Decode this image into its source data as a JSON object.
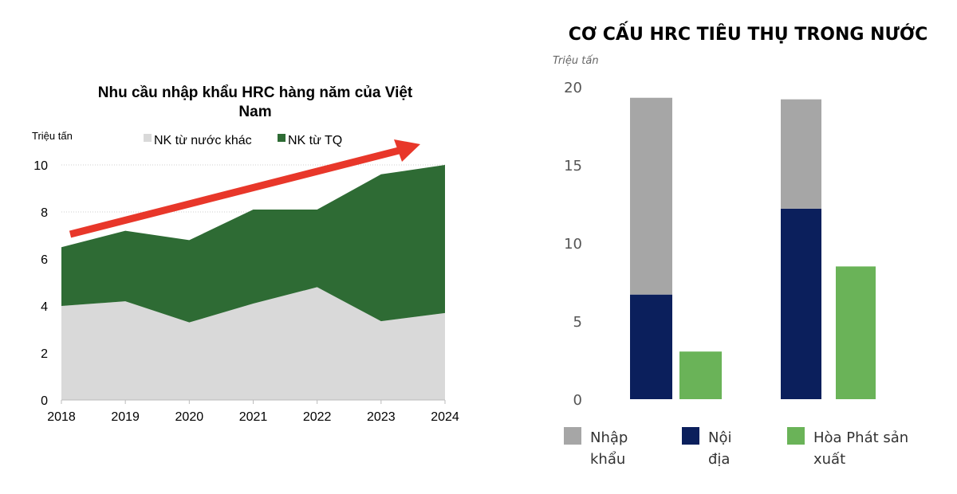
{
  "chart_data": [
    {
      "type": "area",
      "stacked": true,
      "title": "Nhu cầu nhập khẩu HRC hàng năm của Việt Nam",
      "title_lines": [
        "Nhu cầu nhập khẩu HRC hàng năm của Việt",
        "Nam"
      ],
      "ylabel": "Triệu tấn",
      "xlabel": "",
      "x": [
        "2018",
        "2019",
        "2020",
        "2021",
        "2022",
        "2023",
        "2024"
      ],
      "yticks": [
        "0",
        "2",
        "4",
        "6",
        "8",
        "10"
      ],
      "ylim": [
        0,
        10
      ],
      "grid": true,
      "legend_position": "top",
      "series": [
        {
          "name": "NK từ nước khác",
          "color": "#d9d9d9",
          "values": [
            4.0,
            4.2,
            3.3,
            4.1,
            4.8,
            3.35,
            3.7
          ]
        },
        {
          "name": "NK từ TQ",
          "color": "#2e6b34",
          "values": [
            2.5,
            3.0,
            3.5,
            4.0,
            3.3,
            6.25,
            6.3
          ]
        }
      ],
      "annotation": {
        "type": "trend-arrow",
        "color": "#e8372a"
      }
    },
    {
      "type": "bar",
      "title": "CƠ CẤU HRC TIÊU THỤ TRONG NƯỚC",
      "ylabel": "Triệu tấn",
      "yticks": [
        "0",
        "5",
        "10",
        "15",
        "20"
      ],
      "ylim": [
        0,
        20
      ],
      "grid": false,
      "legend_position": "bottom",
      "groups": [
        {
          "stack": {
            "Nội địa": 6.7,
            "Nhập khẩu": 12.6
          },
          "Hòa Phát sản xuất": 3.05
        },
        {
          "stack": {
            "Nội địa": 12.2,
            "Nhập khẩu": 7.0
          },
          "Hòa Phát sản xuất": 8.5
        }
      ],
      "series": [
        {
          "name": "Nhập khẩu",
          "legend_lines": [
            "Nhập",
            "khẩu"
          ],
          "color": "#a6a6a6"
        },
        {
          "name": "Nội địa",
          "legend_lines": [
            "Nội",
            "địa"
          ],
          "color": "#0b1f5c"
        },
        {
          "name": "Hòa Phát sản xuất",
          "legend_lines": [
            "Hòa Phát sản",
            "xuất"
          ],
          "color": "#6ab358"
        }
      ]
    }
  ]
}
